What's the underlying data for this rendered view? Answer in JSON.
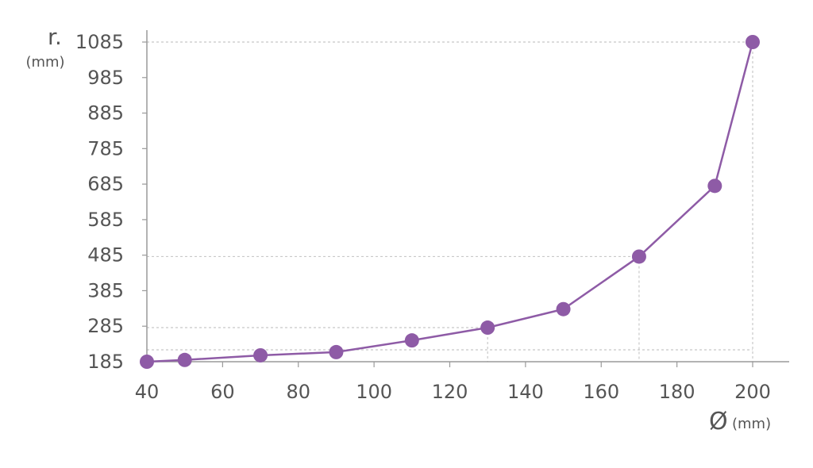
{
  "chart_data": {
    "type": "line",
    "title": "",
    "ylabel_main": "r.",
    "ylabel_unit": "(mm)",
    "xlabel_main": "Ø",
    "xlabel_unit": "(mm)",
    "xlim": [
      40,
      200
    ],
    "ylim": [
      185,
      1085
    ],
    "x_ticks": [
      40,
      60,
      80,
      100,
      120,
      140,
      160,
      180,
      200
    ],
    "y_ticks": [
      185,
      285,
      385,
      485,
      585,
      685,
      785,
      885,
      985,
      1085
    ],
    "series": [
      {
        "x": [
          40,
          50,
          70,
          90,
          110,
          130,
          150,
          170,
          190,
          200
        ],
        "y": [
          185,
          190,
          203,
          212,
          245,
          281,
          333,
          481,
          680,
          1085
        ]
      }
    ],
    "reference_lines": [
      {
        "x": 130,
        "y": 281
      },
      {
        "x": 170,
        "y": 481
      },
      {
        "x": 200,
        "y": 1085
      }
    ],
    "colors": {
      "series": "#8e5ba6",
      "axis": "#9a9a9a",
      "grid": "#c8c8c8",
      "text": "#555555"
    },
    "grid": false,
    "legend": "none"
  }
}
